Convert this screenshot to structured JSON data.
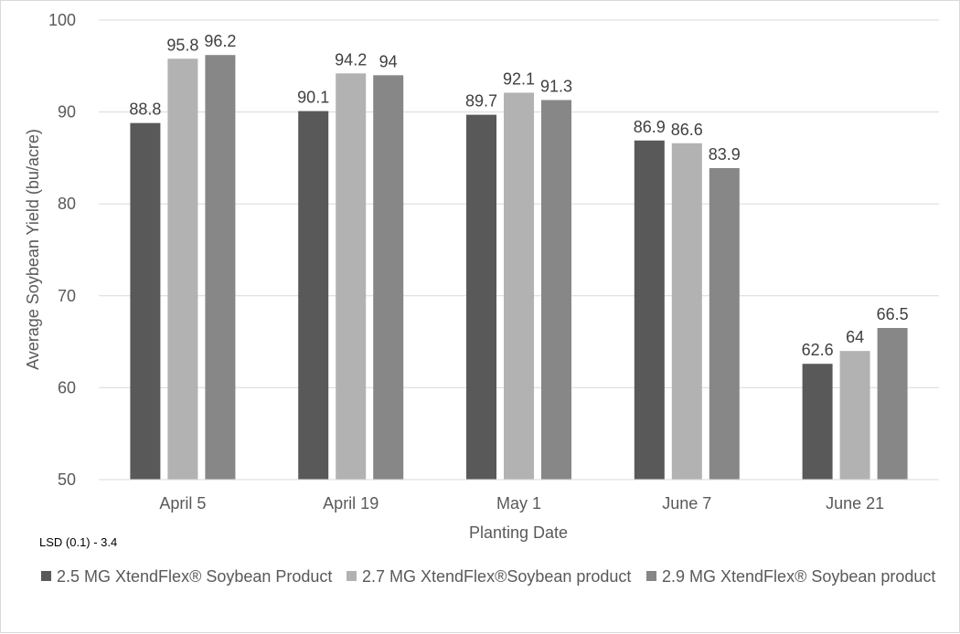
{
  "chart_data": {
    "type": "bar",
    "categories": [
      "April 5",
      "April 19",
      "May 1",
      "June 7",
      "June 21"
    ],
    "series": [
      {
        "name": "2.5 MG XtendFlex® Soybean Product",
        "color": "#595959",
        "values": [
          88.8,
          90.1,
          89.7,
          86.9,
          62.6
        ]
      },
      {
        "name": "2.7 MG XtendFlex®Soybean product",
        "color": "#b2b2b2",
        "values": [
          95.8,
          94.2,
          92.1,
          86.6,
          64
        ]
      },
      {
        "name": "2.9 MG XtendFlex® Soybean product",
        "color": "#878787",
        "values": [
          96.2,
          94,
          91.3,
          83.9,
          66.5
        ]
      }
    ],
    "xlabel": "Planting Date",
    "ylabel": "Average Soybean Yield (bu/acre)",
    "ylim": [
      50,
      100
    ],
    "yticks": [
      50,
      60,
      70,
      80,
      90,
      100
    ],
    "grid": true,
    "legend_position": "bottom",
    "data_labels": true,
    "note": "LSD (0.1) - 3.4"
  }
}
